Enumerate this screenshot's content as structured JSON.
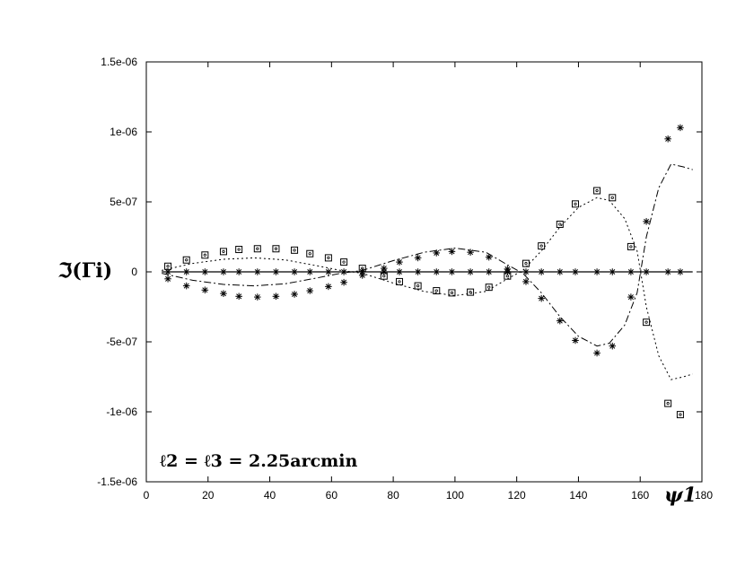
{
  "chart_data": {
    "type": "scatter",
    "xlabel": "ψ1",
    "ylabel": "ℑ(Γi)",
    "xlim": [
      0,
      180
    ],
    "ylim": [
      -1.5e-06,
      1.5e-06
    ],
    "x_ticks": [
      "0",
      "20",
      "40",
      "60",
      "80",
      "100",
      "120",
      "140",
      "160",
      "180"
    ],
    "x_tick_values": [
      0,
      20,
      40,
      60,
      80,
      100,
      120,
      140,
      160,
      180
    ],
    "y_ticks": [
      "1.5e-06",
      "1e-06",
      "5e-07",
      "0",
      "-5e-07",
      "-1e-06",
      "-1.5e-06"
    ],
    "y_tick_values": [
      1.5e-06,
      1e-06,
      5e-07,
      0,
      -5e-07,
      -1e-06,
      -1.5e-06
    ],
    "annotation": "ℓ2 = ℓ3 = 2.25arcmin",
    "grid": false,
    "series": [
      {
        "marker": "square",
        "points": [
          [
            7,
            4e-08
          ],
          [
            13,
            8.5e-08
          ],
          [
            19,
            1.2e-07
          ],
          [
            25,
            1.45e-07
          ],
          [
            30,
            1.6e-07
          ],
          [
            36,
            1.65e-07
          ],
          [
            42,
            1.65e-07
          ],
          [
            48,
            1.55e-07
          ],
          [
            53,
            1.3e-07
          ],
          [
            59,
            1e-07
          ],
          [
            64,
            7e-08
          ],
          [
            70,
            2.5e-08
          ],
          [
            77,
            -3e-08
          ],
          [
            82,
            -7e-08
          ],
          [
            88,
            -1e-07
          ],
          [
            94,
            -1.35e-07
          ],
          [
            99,
            -1.5e-07
          ],
          [
            105,
            -1.45e-07
          ],
          [
            111,
            -1.1e-07
          ],
          [
            117,
            -3e-08
          ],
          [
            123,
            6e-08
          ],
          [
            128,
            1.85e-07
          ],
          [
            134,
            3.4e-07
          ],
          [
            139,
            4.85e-07
          ],
          [
            146,
            5.8e-07
          ],
          [
            151,
            5.3e-07
          ],
          [
            157,
            1.8e-07
          ],
          [
            162,
            -3.6e-07
          ],
          [
            169,
            -9.4e-07
          ],
          [
            173,
            -1.02e-06
          ]
        ]
      },
      {
        "marker": "star",
        "points": [
          [
            7,
            -5e-08
          ],
          [
            13,
            -1e-07
          ],
          [
            19,
            -1.3e-07
          ],
          [
            25,
            -1.55e-07
          ],
          [
            30,
            -1.75e-07
          ],
          [
            36,
            -1.8e-07
          ],
          [
            42,
            -1.75e-07
          ],
          [
            48,
            -1.6e-07
          ],
          [
            53,
            -1.35e-07
          ],
          [
            59,
            -1.05e-07
          ],
          [
            64,
            -7.5e-08
          ],
          [
            70,
            -2.5e-08
          ],
          [
            77,
            2.5e-08
          ],
          [
            82,
            7e-08
          ],
          [
            88,
            1e-07
          ],
          [
            94,
            1.35e-07
          ],
          [
            99,
            1.45e-07
          ],
          [
            105,
            1.4e-07
          ],
          [
            111,
            1.05e-07
          ],
          [
            117,
            2e-08
          ],
          [
            123,
            -7e-08
          ],
          [
            128,
            -1.9e-07
          ],
          [
            134,
            -3.5e-07
          ],
          [
            139,
            -4.9e-07
          ],
          [
            146,
            -5.8e-07
          ],
          [
            151,
            -5.3e-07
          ],
          [
            157,
            -1.8e-07
          ],
          [
            162,
            3.6e-07
          ],
          [
            169,
            9.5e-07
          ],
          [
            173,
            1.03e-06
          ]
        ]
      },
      {
        "marker": "star",
        "points": [
          [
            7,
            0
          ],
          [
            13,
            0
          ],
          [
            19,
            0
          ],
          [
            25,
            0
          ],
          [
            30,
            0
          ],
          [
            36,
            0
          ],
          [
            42,
            0
          ],
          [
            48,
            0
          ],
          [
            53,
            0
          ],
          [
            59,
            0
          ],
          [
            64,
            0
          ],
          [
            70,
            0
          ],
          [
            77,
            0
          ],
          [
            82,
            0
          ],
          [
            88,
            0
          ],
          [
            94,
            0
          ],
          [
            99,
            0
          ],
          [
            105,
            0
          ],
          [
            111,
            0
          ],
          [
            117,
            0
          ],
          [
            123,
            0
          ],
          [
            128,
            0
          ],
          [
            134,
            0
          ],
          [
            139,
            0
          ],
          [
            146,
            0
          ],
          [
            151,
            0
          ],
          [
            157,
            0
          ],
          [
            162,
            0
          ],
          [
            169,
            0
          ],
          [
            173,
            0
          ]
        ]
      },
      {
        "style": "dotted",
        "points": [
          [
            5,
            1e-08
          ],
          [
            15,
            6e-08
          ],
          [
            25,
            9e-08
          ],
          [
            35,
            1e-07
          ],
          [
            45,
            8.5e-08
          ],
          [
            55,
            4.5e-08
          ],
          [
            63,
            1e-08
          ],
          [
            70,
            -1e-08
          ],
          [
            80,
            -8e-08
          ],
          [
            90,
            -1.4e-07
          ],
          [
            100,
            -1.7e-07
          ],
          [
            110,
            -1.4e-07
          ],
          [
            117,
            -5e-08
          ],
          [
            122,
            1e-08
          ],
          [
            128,
            1.5e-07
          ],
          [
            134,
            3.2e-07
          ],
          [
            140,
            4.6e-07
          ],
          [
            146,
            5.3e-07
          ],
          [
            150,
            5.1e-07
          ],
          [
            155,
            3.8e-07
          ],
          [
            159,
            1.5e-07
          ],
          [
            162,
            -2.5e-07
          ],
          [
            166,
            -6e-07
          ],
          [
            170,
            -7.7e-07
          ],
          [
            174,
            -7.5e-07
          ],
          [
            177,
            -7.3e-07
          ]
        ]
      },
      {
        "style": "dash-dot",
        "points": [
          [
            5,
            -1e-08
          ],
          [
            15,
            -6e-08
          ],
          [
            25,
            -9e-08
          ],
          [
            35,
            -1e-07
          ],
          [
            45,
            -8.5e-08
          ],
          [
            55,
            -4.5e-08
          ],
          [
            63,
            -1e-08
          ],
          [
            70,
            1e-08
          ],
          [
            80,
            8e-08
          ],
          [
            90,
            1.4e-07
          ],
          [
            100,
            1.7e-07
          ],
          [
            110,
            1.4e-07
          ],
          [
            117,
            5e-08
          ],
          [
            122,
            -1e-08
          ],
          [
            128,
            -1.5e-07
          ],
          [
            134,
            -3.2e-07
          ],
          [
            140,
            -4.6e-07
          ],
          [
            146,
            -5.3e-07
          ],
          [
            150,
            -5.1e-07
          ],
          [
            155,
            -3.8e-07
          ],
          [
            159,
            -1.5e-07
          ],
          [
            162,
            2.5e-07
          ],
          [
            166,
            6e-07
          ],
          [
            170,
            7.7e-07
          ],
          [
            174,
            7.5e-07
          ],
          [
            177,
            7.3e-07
          ]
        ]
      },
      {
        "style": "solid",
        "points": [
          [
            5,
            0
          ],
          [
            177,
            0
          ]
        ]
      }
    ]
  }
}
